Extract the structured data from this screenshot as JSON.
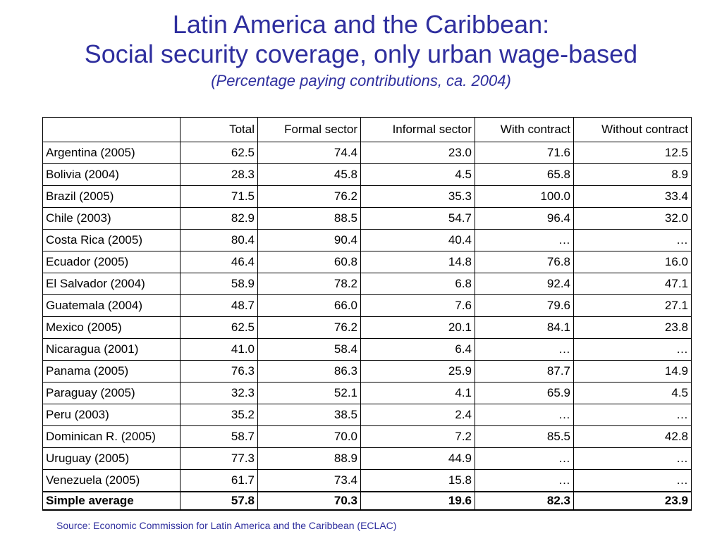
{
  "title": {
    "line1": "Latin America and the Caribbean:",
    "line2": "Social security coverage, only urban wage-based",
    "subtitle": "(Percentage paying contributions, ca. 2004)"
  },
  "table": {
    "headers": [
      "",
      "Total",
      "Formal sector",
      "Informal sector",
      "With contract",
      "Without contract"
    ],
    "rows": [
      [
        "Argentina (2005)",
        "62.5",
        "74.4",
        "23.0",
        "71.6",
        "12.5"
      ],
      [
        "Bolivia (2004)",
        "28.3",
        "45.8",
        "4.5",
        "65.8",
        "8.9"
      ],
      [
        "Brazil (2005)",
        "71.5",
        "76.2",
        "35.3",
        "100.0",
        "33.4"
      ],
      [
        "Chile (2003)",
        "82.9",
        "88.5",
        "54.7",
        "96.4",
        "32.0"
      ],
      [
        "Costa Rica (2005)",
        "80.4",
        "90.4",
        "40.4",
        "…",
        "…"
      ],
      [
        "Ecuador (2005)",
        "46.4",
        "60.8",
        "14.8",
        "76.8",
        "16.0"
      ],
      [
        "El Salvador (2004)",
        "58.9",
        "78.2",
        "6.8",
        "92.4",
        "47.1"
      ],
      [
        "Guatemala (2004)",
        "48.7",
        "66.0",
        "7.6",
        "79.6",
        "27.1"
      ],
      [
        "Mexico (2005)",
        "62.5",
        "76.2",
        "20.1",
        "84.1",
        "23.8"
      ],
      [
        "Nicaragua (2001)",
        "41.0",
        "58.4",
        "6.4",
        "…",
        "…"
      ],
      [
        "Panama (2005)",
        "76.3",
        "86.3",
        "25.9",
        "87.7",
        "14.9"
      ],
      [
        "Paraguay (2005)",
        "32.3",
        "52.1",
        "4.1",
        "65.9",
        "4.5"
      ],
      [
        "Peru (2003)",
        "35.2",
        "38.5",
        "2.4",
        "…",
        "…"
      ],
      [
        "Dominican R. (2005)",
        "58.7",
        "70.0",
        "7.2",
        "85.5",
        "42.8"
      ],
      [
        "Uruguay (2005)",
        "77.3",
        "88.9",
        "44.9",
        "…",
        "…"
      ],
      [
        "Venezuela (2005)",
        "61.7",
        "73.4",
        "15.8",
        "…",
        "…"
      ]
    ],
    "average": [
      "Simple average",
      "57.8",
      "70.3",
      "19.6",
      "82.3",
      "23.9"
    ]
  },
  "source": "Source: Economic Commission for Latin America and the Caribbean (ECLAC)",
  "colors": {
    "title": "#2e2e9e",
    "source": "#2e2e9e",
    "text": "#000000"
  }
}
